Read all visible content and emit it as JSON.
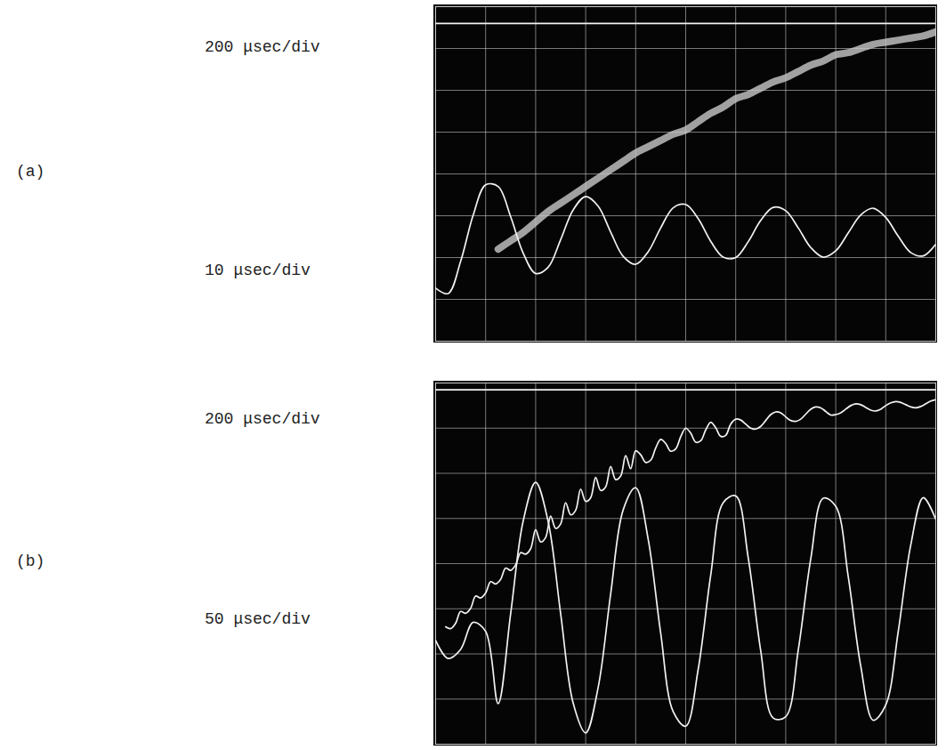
{
  "chart_data": [
    {
      "type": "line",
      "title": "(a)",
      "xlim": [
        0,
        10
      ],
      "ylim": [
        0,
        8
      ],
      "xticks": [
        0,
        1,
        2,
        3,
        4,
        5,
        6,
        7,
        8,
        9,
        10
      ],
      "yticks": [
        0,
        1,
        2,
        3,
        4,
        5,
        6,
        7,
        8
      ],
      "grid": true,
      "tick_labels": false,
      "legend": "left",
      "series": [
        {
          "color": "#f2f2f2",
          "line_style": "solid",
          "x": [
            0,
            10
          ],
          "values": [
            7.6,
            7.6
          ]
        },
        {
          "name": "200 μsec/div",
          "color": "#c8c8c8",
          "line_style": "band",
          "x": [
            1.25,
            1.5,
            1.75,
            2.0,
            2.25,
            2.5,
            2.75,
            3.0,
            3.25,
            3.5,
            3.75,
            4.0,
            4.25,
            4.5,
            4.75,
            5.0,
            5.25,
            5.5,
            5.75,
            6.0,
            6.25,
            6.5,
            6.75,
            7.0,
            7.25,
            7.5,
            7.75,
            8.0,
            8.25,
            8.5,
            8.75,
            9.0,
            9.25,
            9.5,
            9.75,
            10.0
          ],
          "values": [
            2.2,
            2.4,
            2.6,
            2.85,
            3.1,
            3.3,
            3.5,
            3.7,
            3.9,
            4.1,
            4.3,
            4.5,
            4.65,
            4.8,
            4.95,
            5.05,
            5.25,
            5.45,
            5.6,
            5.8,
            5.9,
            6.05,
            6.2,
            6.3,
            6.45,
            6.6,
            6.7,
            6.85,
            6.9,
            7.0,
            7.1,
            7.15,
            7.2,
            7.25,
            7.3,
            7.4
          ]
        },
        {
          "name": "10 μsec/div",
          "color": "#f2f2f2",
          "line_style": "solid",
          "x": [
            0,
            0.25,
            0.5,
            0.75,
            1.0,
            1.25,
            1.5,
            1.75,
            2.0,
            2.25,
            2.5,
            2.75,
            3.0,
            3.25,
            3.5,
            3.75,
            4.0,
            4.25,
            4.5,
            4.75,
            5.0,
            5.25,
            5.5,
            5.75,
            6.0,
            6.25,
            6.5,
            6.75,
            7.0,
            7.25,
            7.5,
            7.75,
            8.0,
            8.25,
            8.5,
            8.75,
            9.0,
            9.25,
            9.5,
            9.75,
            10.0
          ],
          "values": [
            1.27,
            1.14,
            1.91,
            3.01,
            3.74,
            3.7,
            2.98,
            2.11,
            1.62,
            1.77,
            2.43,
            3.14,
            3.46,
            3.23,
            2.61,
            2.03,
            1.84,
            2.14,
            2.71,
            3.19,
            3.27,
            2.93,
            2.39,
            2.01,
            2.0,
            2.38,
            2.89,
            3.2,
            3.12,
            2.71,
            2.24,
            2.01,
            2.16,
            2.59,
            3.02,
            3.18,
            2.96,
            2.51,
            2.12,
            2.04,
            2.32
          ]
        }
      ]
    },
    {
      "type": "line",
      "title": "(b)",
      "xlim": [
        0,
        10
      ],
      "ylim": [
        0,
        8
      ],
      "xticks": [
        0,
        1,
        2,
        3,
        4,
        5,
        6,
        7,
        8,
        9,
        10
      ],
      "yticks": [
        0,
        1,
        2,
        3,
        4,
        5,
        6,
        7,
        8
      ],
      "grid": true,
      "tick_labels": false,
      "legend": "left",
      "series": [
        {
          "color": "#f2f2f2",
          "line_style": "solid",
          "x": [
            0,
            10
          ],
          "values": [
            7.85,
            7.85
          ]
        },
        {
          "name": "200 μsec/div",
          "color": "#f2f2f2",
          "line_style": "solid",
          "x": [
            0.2,
            0.3,
            0.4,
            0.5,
            0.6,
            0.7,
            0.8,
            0.9,
            1.0,
            1.1,
            1.2,
            1.3,
            1.4,
            1.5,
            1.6,
            1.7,
            1.8,
            1.9,
            2.0,
            2.1,
            2.2,
            2.3,
            2.4,
            2.5,
            2.6,
            2.7,
            2.8,
            2.9,
            3.0,
            3.1,
            3.2,
            3.3,
            3.4,
            3.5,
            3.6,
            3.7,
            3.8,
            3.9,
            4.0,
            4.1,
            4.2,
            4.3,
            4.4,
            4.5,
            4.6,
            4.7,
            4.8,
            4.9,
            5.0,
            5.1,
            5.2,
            5.3,
            5.4,
            5.5,
            5.6,
            5.7,
            5.8,
            5.9,
            6.0,
            6.1,
            6.2,
            6.3,
            6.4,
            6.5,
            6.6,
            6.7,
            6.8,
            6.9,
            7.0,
            7.1,
            7.2,
            7.3,
            7.4,
            7.5,
            7.6,
            7.7,
            7.8,
            7.9,
            8.0,
            8.1,
            8.2,
            8.3,
            8.4,
            8.5,
            8.6,
            8.7,
            8.8,
            8.9,
            9.0,
            9.1,
            9.2,
            9.3,
            9.4,
            9.5,
            9.6,
            9.7,
            9.8,
            9.9,
            10.0
          ],
          "values": [
            2.6,
            2.56,
            2.68,
            2.94,
            2.9,
            3.01,
            3.28,
            3.24,
            3.35,
            3.6,
            3.55,
            3.65,
            3.9,
            3.85,
            3.97,
            4.24,
            4.21,
            4.33,
            4.75,
            4.48,
            4.58,
            5.05,
            4.78,
            4.88,
            5.35,
            5.08,
            5.18,
            5.65,
            5.38,
            5.46,
            5.91,
            5.62,
            5.7,
            6.15,
            5.86,
            5.94,
            6.39,
            6.1,
            6.5,
            6.41,
            6.24,
            6.29,
            6.56,
            6.75,
            6.66,
            6.49,
            6.54,
            6.81,
            7.0,
            6.89,
            6.69,
            6.72,
            6.96,
            7.13,
            7.01,
            6.82,
            6.84,
            7.09,
            7.2,
            7.18,
            7.09,
            7.0,
            6.98,
            7.04,
            7.17,
            7.3,
            7.36,
            7.34,
            7.25,
            7.17,
            7.15,
            7.2,
            7.31,
            7.42,
            7.47,
            7.45,
            7.37,
            7.29,
            7.3,
            7.34,
            7.42,
            7.5,
            7.54,
            7.52,
            7.46,
            7.4,
            7.38,
            7.42,
            7.5,
            7.56,
            7.59,
            7.57,
            7.52,
            7.47,
            7.45,
            7.48,
            7.54,
            7.6,
            7.63
          ]
        },
        {
          "name": "50 μsec/div",
          "color": "#f2f2f2",
          "line_style": "solid",
          "x": [
            0,
            0.25,
            0.5,
            0.75,
            1.0,
            1.25,
            1.5,
            1.75,
            2.0,
            2.25,
            2.5,
            2.75,
            3.0,
            3.25,
            3.5,
            3.75,
            4.0,
            4.25,
            4.5,
            4.75,
            5.0,
            5.25,
            5.5,
            5.75,
            6.0,
            6.25,
            6.5,
            6.75,
            7.0,
            7.25,
            7.5,
            7.75,
            8.0,
            8.25,
            8.5,
            8.75,
            9.0,
            9.25,
            9.5,
            9.75,
            10.0
          ],
          "values": [
            2.3,
            1.9,
            2.1,
            2.7,
            2.5,
            0.9,
            2.89,
            4.94,
            5.8,
            4.93,
            2.89,
            0.91,
            0.25,
            1.26,
            3.33,
            5.19,
            5.68,
            4.54,
            2.46,
            0.72,
            0.4,
            1.66,
            3.74,
            5.35,
            5.5,
            4.13,
            2.07,
            0.58,
            0.61,
            2.08,
            4.1,
            5.45,
            5.27,
            3.71,
            1.73,
            0.53,
            0.87,
            2.5,
            4.41,
            5.46,
            4.98
          ]
        }
      ]
    }
  ]
}
